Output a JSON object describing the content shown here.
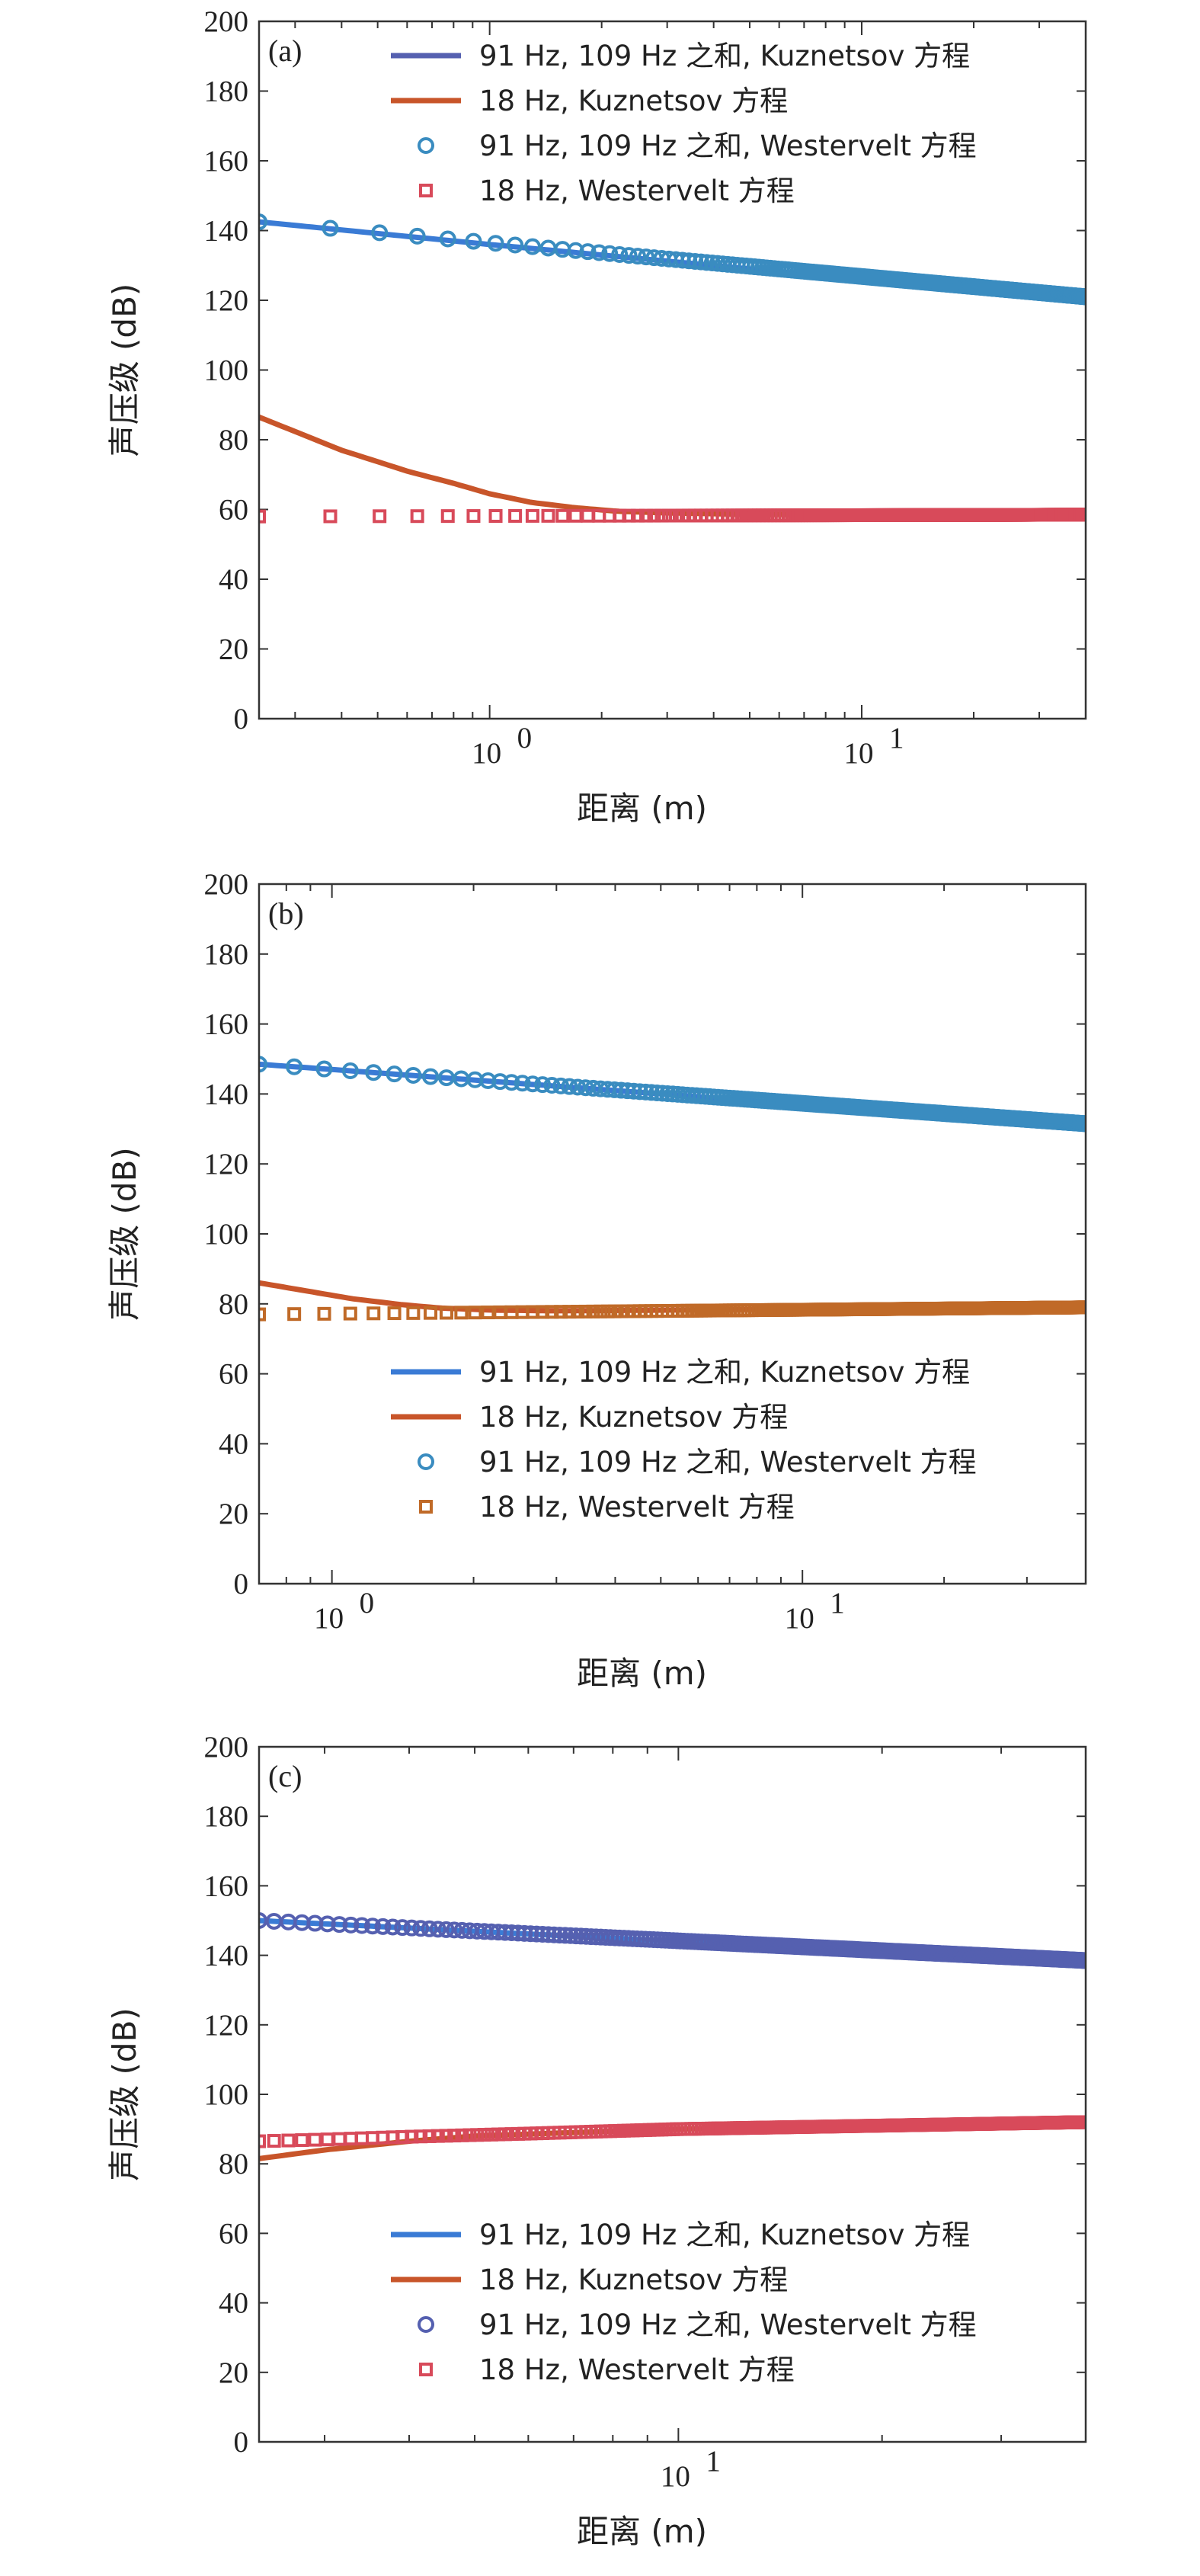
{
  "colors": {
    "kuz_sum": "#3a7bd5",
    "kuz_sum_alt": "#5560b0",
    "kuz_18": "#c8552a",
    "west_sum": "#3a8cc0",
    "west_sum_alt": "#5560b0",
    "west_18": "#d84a5a",
    "west_18_alt": "#c06a28"
  },
  "chart_data": [
    {
      "type": "line",
      "panel_label": "(a)",
      "xlabel": "距离 (m)",
      "ylabel": "声压级 (dB)",
      "xscale": "log",
      "xlim": [
        0.24,
        40
      ],
      "ylim": [
        0,
        200
      ],
      "yticks": [
        0,
        20,
        40,
        60,
        80,
        100,
        120,
        140,
        160,
        180,
        200
      ],
      "xticks": [
        1,
        10
      ],
      "xticklabels": [
        {
          "base": "10",
          "exp": "0"
        },
        {
          "base": "10",
          "exp": "1"
        }
      ],
      "legend_position": "top-right",
      "series": [
        {
          "name": "91 Hz, 109 Hz 之和, Kuznetsov 方程",
          "kind": "line",
          "color_key": "kuz_sum_alt",
          "line_color_key": "kuz_sum",
          "legend_color_key": "kuz_sum_alt",
          "x": [
            0.24,
            1,
            10,
            40
          ],
          "y": [
            142.5,
            136,
            126,
            121
          ]
        },
        {
          "name": "18 Hz, Kuznetsov 方程",
          "kind": "line",
          "color_key": "kuz_18",
          "legend_color_key": "kuz_18",
          "x": [
            0.24,
            0.4,
            0.6,
            0.8,
            1.0,
            1.3,
            1.7,
            2.2,
            3,
            5,
            10,
            40
          ],
          "y": [
            86.5,
            77,
            71,
            67.5,
            64.5,
            62,
            60.5,
            59.5,
            59,
            58.6,
            58.5,
            58.5
          ]
        },
        {
          "name": "91 Hz, 109 Hz 之和, Westervelt 方程",
          "kind": "circle",
          "color_key": "west_sum",
          "legend_color_key": "west_sum",
          "x": [
            0.24,
            40
          ],
          "y": [
            142.5,
            121
          ]
        },
        {
          "name": "18 Hz, Westervelt 方程",
          "kind": "square",
          "color_key": "west_18",
          "legend_color_key": "west_18",
          "x": [
            0.24,
            40
          ],
          "y": [
            58,
            58.5
          ]
        }
      ]
    },
    {
      "type": "line",
      "panel_label": "(b)",
      "xlabel": "距离 (m)",
      "ylabel": "声压级 (dB)",
      "xscale": "log",
      "xlim": [
        0.7,
        40
      ],
      "ylim": [
        0,
        200
      ],
      "yticks": [
        0,
        20,
        40,
        60,
        80,
        100,
        120,
        140,
        160,
        180,
        200
      ],
      "xticks": [
        1,
        10
      ],
      "xticklabels": [
        {
          "base": "10",
          "exp": "0"
        },
        {
          "base": "10",
          "exp": "1"
        }
      ],
      "legend_position": "bottom-right",
      "series": [
        {
          "name": "91 Hz, 109 Hz 之和, Kuznetsov 方程",
          "kind": "line",
          "color_key": "kuz_sum",
          "legend_color_key": "kuz_sum",
          "x": [
            0.7,
            1,
            10,
            40
          ],
          "y": [
            148.5,
            147,
            137,
            131.5
          ]
        },
        {
          "name": "18 Hz, Kuznetsov 方程",
          "kind": "line",
          "color_key": "kuz_18",
          "legend_color_key": "kuz_18",
          "x": [
            0.7,
            0.9,
            1.1,
            1.4,
            1.7,
            2.2,
            3,
            5,
            10,
            40
          ],
          "y": [
            86,
            83.5,
            81.5,
            79.8,
            78.8,
            78.2,
            78,
            78.2,
            78.5,
            79
          ]
        },
        {
          "name": "91 Hz, 109 Hz 之和, Westervelt 方程",
          "kind": "circle",
          "color_key": "west_sum",
          "legend_color_key": "west_sum",
          "x": [
            0.7,
            40
          ],
          "y": [
            148.5,
            131.5
          ]
        },
        {
          "name": "18 Hz, Westervelt 方程",
          "kind": "square",
          "color_key": "west_18_alt",
          "legend_color_key": "west_18_alt",
          "x": [
            0.7,
            40
          ],
          "y": [
            77,
            79
          ]
        }
      ]
    },
    {
      "type": "line",
      "panel_label": "(c)",
      "xlabel": "距离 (m)",
      "ylabel": "声压级 (dB)",
      "xscale": "log",
      "xlim": [
        2.4,
        40
      ],
      "ylim": [
        0,
        200
      ],
      "yticks": [
        0,
        20,
        40,
        60,
        80,
        100,
        120,
        140,
        160,
        180,
        200
      ],
      "xticks": [
        10
      ],
      "xticklabels": [
        {
          "base": "10",
          "exp": "1"
        }
      ],
      "legend_position": "bottom-right",
      "series": [
        {
          "name": "91 Hz, 109 Hz 之和, Kuznetsov 方程",
          "kind": "line",
          "color_key": "kuz_sum",
          "legend_color_key": "kuz_sum",
          "x": [
            2.4,
            10,
            40
          ],
          "y": [
            150,
            144,
            138.5
          ]
        },
        {
          "name": "18 Hz, Kuznetsov 方程",
          "kind": "line",
          "color_key": "kuz_18",
          "legend_color_key": "kuz_18",
          "x": [
            2.4,
            3,
            4,
            5,
            7,
            10,
            20,
            40
          ],
          "y": [
            81.5,
            84,
            86.5,
            88,
            89,
            90,
            91,
            92
          ]
        },
        {
          "name": "91 Hz, 109 Hz 之和, Westervelt 方程",
          "kind": "circle",
          "color_key": "west_sum_alt",
          "legend_color_key": "west_sum_alt",
          "x": [
            2.4,
            40
          ],
          "y": [
            150,
            138.5
          ]
        },
        {
          "name": "18 Hz, Westervelt 方程",
          "kind": "square",
          "color_key": "west_18",
          "legend_color_key": "west_18",
          "x": [
            2.4,
            3,
            4,
            6,
            10,
            40
          ],
          "y": [
            86.5,
            87,
            87.8,
            88.7,
            90,
            92
          ]
        }
      ]
    }
  ]
}
